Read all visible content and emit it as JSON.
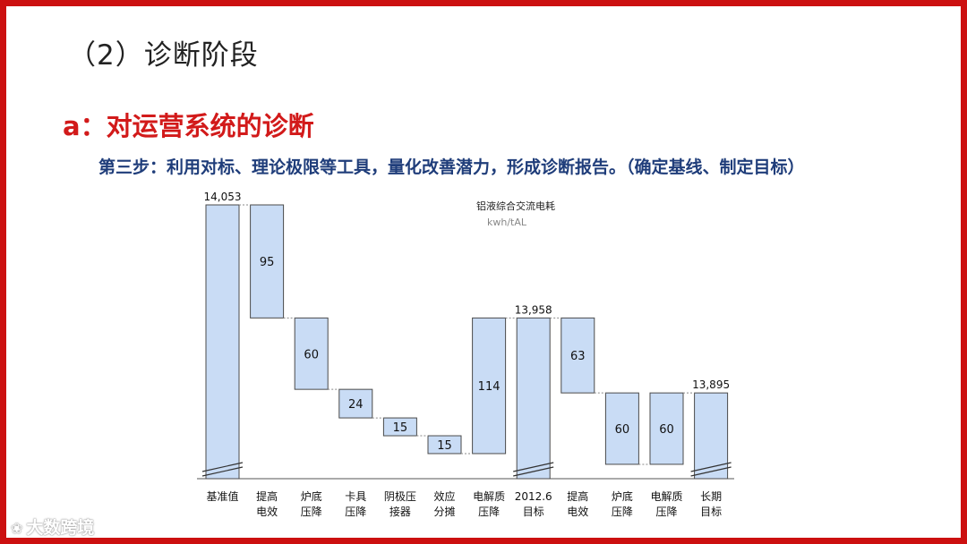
{
  "header": {
    "section_title": "（2）诊断阶段",
    "sub_title": "a：对运营系统的诊断",
    "step_text": "第三步：利用对标、理论极限等工具，量化改善潜力，形成诊断报告。（确定基线、制定目标）"
  },
  "watermark": {
    "icon": "weibo-icon",
    "text": "大数跨境"
  },
  "colors": {
    "frame": "#cc1010",
    "bar_fill": "#c9dcf5",
    "bar_stroke": "#4a4a4a",
    "subtitle": "#d21a1a",
    "step": "#1f3d7a"
  },
  "chart_data": {
    "type": "waterfall",
    "title": "铝液综合交流电耗",
    "unit": "kwh/tAL",
    "axis_break": true,
    "categories": [
      "基准值",
      "提高电效",
      "炉底压降",
      "卡具压降",
      "阴极压接器",
      "效应分摊",
      "电解质压降",
      "2012.6目标",
      "提高电效",
      "炉底压降",
      "电解质压降",
      "长期目标"
    ],
    "category_labels": [
      [
        "基准值"
      ],
      [
        "提高",
        "电效"
      ],
      [
        "炉底",
        "压降"
      ],
      [
        "卡具",
        "压降"
      ],
      [
        "阴极压",
        "接器"
      ],
      [
        "效应",
        "分摊"
      ],
      [
        "电解质",
        "压降"
      ],
      [
        "2012.6",
        "目标"
      ],
      [
        "提高",
        "电效"
      ],
      [
        "炉底",
        "压降"
      ],
      [
        "电解质",
        "压降"
      ],
      [
        "长期",
        "目标"
      ]
    ],
    "bars": [
      {
        "kind": "total",
        "value": 14053,
        "label": "14,053"
      },
      {
        "kind": "delta",
        "value": -95,
        "label": "95"
      },
      {
        "kind": "delta",
        "value": -60,
        "label": "60"
      },
      {
        "kind": "delta",
        "value": -24,
        "label": "24"
      },
      {
        "kind": "delta",
        "value": -15,
        "label": "15"
      },
      {
        "kind": "delta",
        "value": -15,
        "label": "15"
      },
      {
        "kind": "delta",
        "value": 114,
        "label": "114"
      },
      {
        "kind": "total",
        "value": 13958,
        "label": "13,958"
      },
      {
        "kind": "delta",
        "value": -63,
        "label": "63"
      },
      {
        "kind": "delta",
        "value": -60,
        "label": "60"
      },
      {
        "kind": "delta",
        "value": 60,
        "label": "60"
      },
      {
        "kind": "total",
        "value": 13895,
        "label": "13,895"
      }
    ]
  }
}
